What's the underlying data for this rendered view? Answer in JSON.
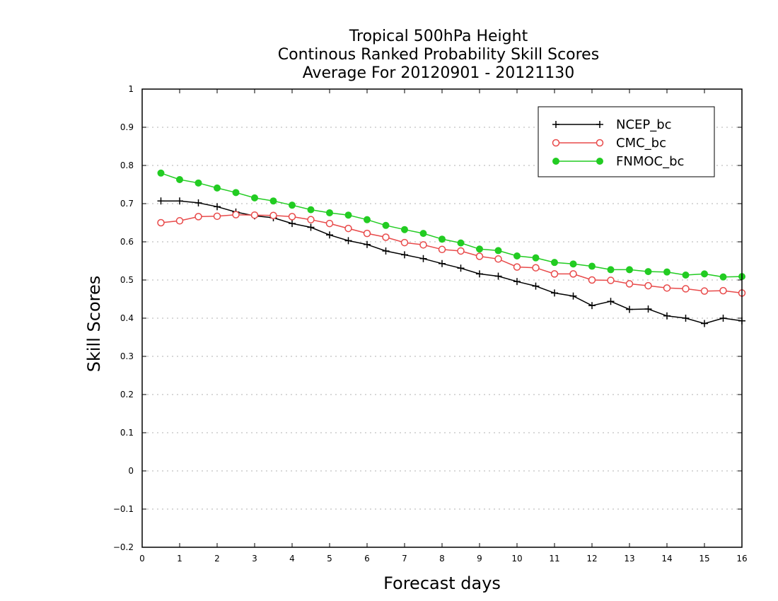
{
  "chart_data": {
    "type": "line",
    "title": [
      "Tropical 500hPa Height",
      "Continous Ranked Probability Skill Scores",
      "Average For 20120901 - 20121130"
    ],
    "xlabel": "Forecast days",
    "ylabel": "Skill Scores",
    "xlim": [
      0,
      16
    ],
    "ylim": [
      -0.2,
      1
    ],
    "xticks": [
      "0",
      "1",
      "2",
      "3",
      "4",
      "5",
      "6",
      "7",
      "8",
      "9",
      "10",
      "11",
      "12",
      "13",
      "14",
      "15",
      "16"
    ],
    "yticks": [
      "−0.2",
      "−0.1",
      "0",
      "0.1",
      "0.2",
      "0.3",
      "0.4",
      "0.5",
      "0.6",
      "0.7",
      "0.8",
      "0.9",
      "1"
    ],
    "grid": true,
    "legend_position": "top-right",
    "x": [
      0.5,
      1,
      1.5,
      2,
      2.5,
      3,
      3.5,
      4,
      4.5,
      5,
      5.5,
      6,
      6.5,
      7,
      7.5,
      8,
      8.5,
      9,
      9.5,
      10,
      10.5,
      11,
      11.5,
      12,
      12.5,
      13,
      13.5,
      14,
      14.5,
      15,
      15.5,
      16
    ],
    "series": [
      {
        "name": "NCEP_bc",
        "color": "#000000",
        "marker": "plus",
        "values": [
          0.707,
          0.707,
          0.702,
          0.692,
          0.678,
          0.668,
          0.663,
          0.648,
          0.638,
          0.618,
          0.603,
          0.593,
          0.576,
          0.566,
          0.556,
          0.543,
          0.531,
          0.516,
          0.51,
          0.496,
          0.484,
          0.466,
          0.458,
          0.433,
          0.444,
          0.423,
          0.424,
          0.406,
          0.4,
          0.386,
          0.4,
          0.393
        ]
      },
      {
        "name": "CMC_bc",
        "color": "#e84a4a",
        "marker": "open-circle",
        "values": [
          0.65,
          0.655,
          0.666,
          0.667,
          0.671,
          0.67,
          0.669,
          0.666,
          0.658,
          0.648,
          0.635,
          0.622,
          0.612,
          0.598,
          0.592,
          0.58,
          0.576,
          0.562,
          0.555,
          0.534,
          0.532,
          0.516,
          0.516,
          0.5,
          0.499,
          0.49,
          0.485,
          0.479,
          0.477,
          0.471,
          0.472,
          0.466
        ]
      },
      {
        "name": "FNMOC_bc",
        "color": "#22cc22",
        "marker": "filled-circle",
        "values": [
          0.78,
          0.763,
          0.754,
          0.741,
          0.729,
          0.715,
          0.707,
          0.696,
          0.684,
          0.676,
          0.67,
          0.658,
          0.643,
          0.632,
          0.622,
          0.607,
          0.597,
          0.581,
          0.577,
          0.563,
          0.558,
          0.546,
          0.542,
          0.536,
          0.527,
          0.527,
          0.522,
          0.521,
          0.513,
          0.516,
          0.508,
          0.509
        ]
      }
    ]
  }
}
